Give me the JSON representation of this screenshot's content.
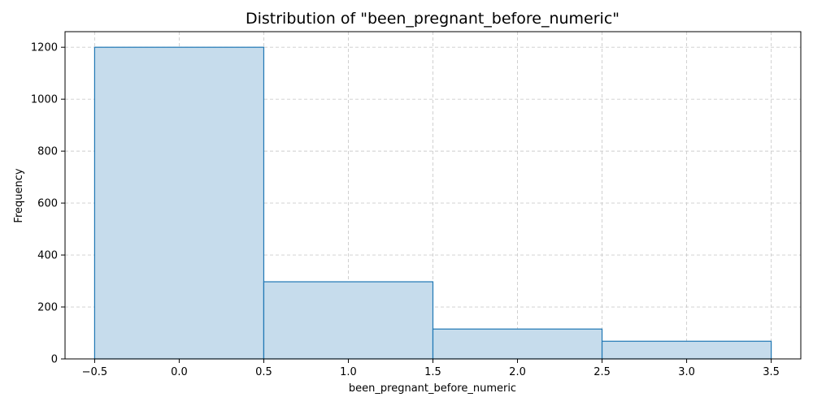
{
  "chart_data": {
    "type": "bar",
    "title": "Distribution of \"been_pregnant_before_numeric\"",
    "xlabel": "been_pregnant_before_numeric",
    "ylabel": "Frequency",
    "bins": [
      {
        "x0": -0.5,
        "x1": 0.5,
        "value": 1200
      },
      {
        "x0": 0.5,
        "x1": 1.5,
        "value": 297
      },
      {
        "x0": 1.5,
        "x1": 2.5,
        "value": 115
      },
      {
        "x0": 2.5,
        "x1": 3.5,
        "value": 68
      }
    ],
    "xlim": [
      -0.675,
      3.675
    ],
    "ylim": [
      0,
      1260
    ],
    "xticks": [
      -0.5,
      0.0,
      0.5,
      1.0,
      1.5,
      2.0,
      2.5,
      3.0,
      3.5
    ],
    "xtick_labels": [
      "−0.5",
      "0.0",
      "0.5",
      "1.0",
      "1.5",
      "2.0",
      "2.5",
      "3.0",
      "3.5"
    ],
    "yticks": [
      0,
      200,
      400,
      600,
      800,
      1000,
      1200
    ],
    "ytick_labels": [
      "0",
      "200",
      "400",
      "600",
      "800",
      "1000",
      "1200"
    ],
    "grid": true,
    "colors": {
      "bar_fill": "#c6dcec",
      "bar_edge": "#1f77b4",
      "grid": "#cccccc",
      "axis": "#000000"
    }
  }
}
